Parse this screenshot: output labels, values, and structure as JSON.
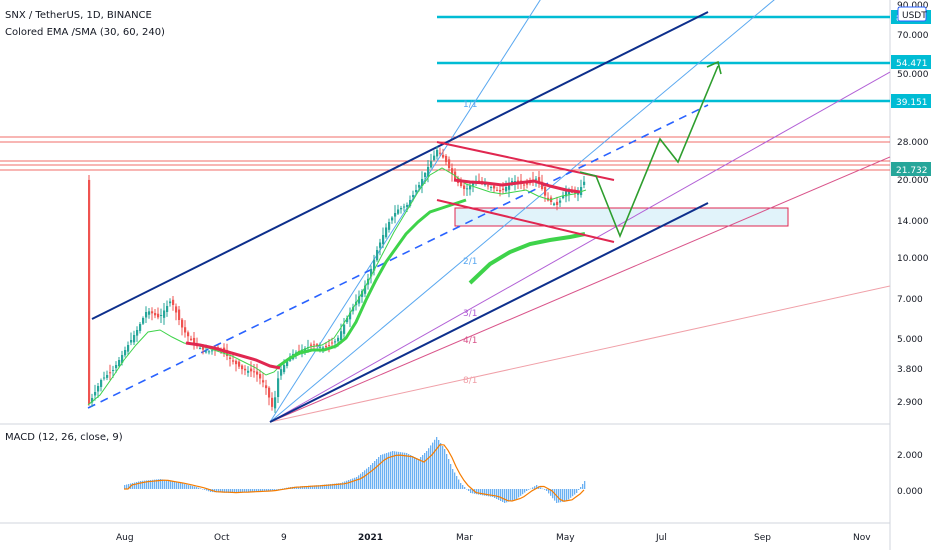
{
  "header": {
    "symbol_line": "SNX / TetherUS, 1D, BINANCE",
    "indicator_line": "Colored EMA /SMA (30, 60, 240)",
    "macd_label": "MACD (12, 26, close, 9)"
  },
  "currency_badge": "USDT",
  "colors": {
    "up_candle": "#26a69a",
    "down_candle": "#ef5350",
    "ema_green": "#3ed34a",
    "ema_red": "#e02750",
    "channel": "#0d2f8c",
    "target": "#00bcd4",
    "fan_blue": "#5aa8f0",
    "fan_purple": "#b260d6",
    "fan_pink": "#e66f8f",
    "projection": "#2e9e2e",
    "macd_hist": "#6ab0f2",
    "macd_signal": "#f57c00"
  },
  "price_axis": {
    "scale": "log",
    "ticks": [
      "90.000",
      "70.000",
      "50.000",
      "28.000",
      "20.000",
      "14.000",
      "10.000",
      "7.000",
      "5.000",
      "3.800",
      "2.900"
    ]
  },
  "price_badges": [
    "80.0",
    "54.471",
    "39.151",
    "21.732"
  ],
  "macd_axis": {
    "ticks": [
      "2.000",
      "0.000"
    ]
  },
  "time_axis": {
    "labels": [
      "Aug",
      "Oct",
      "9",
      "2021",
      "Mar",
      "May",
      "Jul",
      "Sep",
      "Nov"
    ]
  },
  "gann_labels": [
    "1/1",
    "2/1",
    "3/1",
    "4/1",
    "8/1"
  ],
  "chart_data": {
    "type": "candlestick",
    "symbol": "SNX / TetherUS",
    "interval": "1D",
    "exchange": "BINANCE",
    "ylim": [
      2.6,
      95
    ],
    "x_range": [
      "Jul 2020",
      "Nov 2021"
    ],
    "key_price_levels": [
      80.0,
      54.471,
      39.151,
      21.732
    ],
    "approx_swings": [
      {
        "date": "Jul 2020",
        "price": 2.7
      },
      {
        "date": "Aug 2020",
        "price": 7.3
      },
      {
        "date": "Sep 2020",
        "price": 4.4
      },
      {
        "date": "Nov 2020",
        "price": 2.6
      },
      {
        "date": "Feb 2021",
        "price": 28.0
      },
      {
        "date": "Apr 2021",
        "price": 14.5
      },
      {
        "date": "May 2021",
        "price": 22.0
      }
    ],
    "indicators": [
      "Colored EMA /SMA (30, 60, 240)",
      "MACD (12, 26, close, 9)"
    ]
  }
}
